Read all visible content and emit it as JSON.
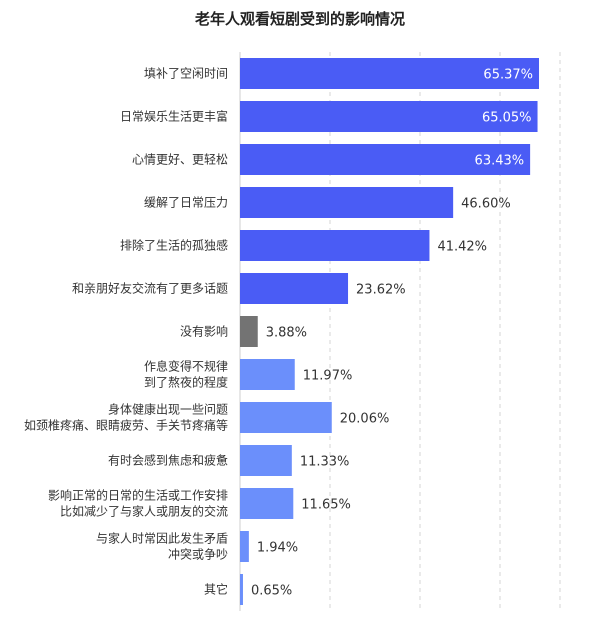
{
  "chart_data": {
    "type": "bar",
    "orientation": "horizontal",
    "title": "老年人观看短剧受到的影响情况",
    "categories": [
      [
        "填补了空闲时间"
      ],
      [
        "日常娱乐生活更丰富"
      ],
      [
        "心情更好、更轻松"
      ],
      [
        "缓解了日常压力"
      ],
      [
        "排除了生活的孤独感"
      ],
      [
        "和亲朋好友交流有了更多话题"
      ],
      [
        "没有影响"
      ],
      [
        "作息变得不规律",
        "到了熬夜的程度"
      ],
      [
        "身体健康出现一些问题",
        "如颈椎疼痛、眼睛疲劳、手关节疼痛等"
      ],
      [
        "有时会感到焦虑和疲惫"
      ],
      [
        "影响正常的日常的生活或工作安排",
        "比如减少了与家人或朋友的交流"
      ],
      [
        "与家人时常因此发生矛盾",
        "冲突或争吵"
      ],
      [
        "其它"
      ]
    ],
    "values": [
      65.37,
      65.05,
      63.43,
      46.6,
      41.42,
      23.62,
      3.88,
      11.97,
      20.06,
      11.33,
      11.65,
      1.94,
      0.65
    ],
    "value_labels": [
      "65.37%",
      "65.05%",
      "63.43%",
      "46.60%",
      "41.42%",
      "23.62%",
      "3.88%",
      "11.97%",
      "20.06%",
      "11.33%",
      "11.65%",
      "1.94%",
      "0.65%"
    ],
    "bar_colors": [
      "#4a5cf5",
      "#4a5cf5",
      "#4a5cf5",
      "#4a5cf5",
      "#4a5cf5",
      "#4a5cf5",
      "#737373",
      "#6b8ffb",
      "#6b8ffb",
      "#6b8ffb",
      "#6b8ffb",
      "#6b8ffb",
      "#6b8ffb"
    ],
    "value_label_inside": [
      true,
      true,
      true,
      false,
      false,
      false,
      false,
      false,
      false,
      false,
      false,
      false,
      false
    ],
    "xlim": [
      0,
      70
    ],
    "grid": "vertical dashed",
    "xlabel": "",
    "ylabel": ""
  }
}
